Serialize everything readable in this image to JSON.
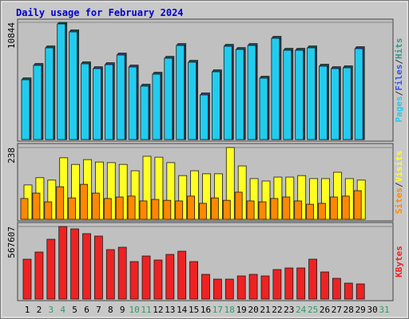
{
  "chart_data": [
    {
      "type": "bar",
      "title": "Daily usage for February 2024",
      "categories": [
        "1",
        "2",
        "3",
        "4",
        "5",
        "6",
        "7",
        "8",
        "9",
        "10",
        "11",
        "12",
        "13",
        "14",
        "15",
        "16",
        "17",
        "18",
        "19",
        "20",
        "21",
        "22",
        "23",
        "24",
        "25",
        "26",
        "27",
        "28",
        "29",
        "30",
        "31"
      ],
      "weekend_indices": [
        2,
        3,
        9,
        10,
        16,
        17,
        23,
        24,
        30
      ],
      "weekend_color": "#339966",
      "weekday_color": "#000000",
      "legend_separator": "/",
      "ylim": [
        0,
        10844
      ],
      "yticks": [
        10844
      ],
      "grid": true,
      "series": [
        {
          "name": "Hits",
          "color": "#339988",
          "values": [
            5710,
            7040,
            8660,
            10844,
            10140,
            7190,
            6740,
            7110,
            8000,
            6890,
            5120,
            6230,
            7700,
            8880,
            7330,
            4310,
            6450,
            8810,
            8510,
            8880,
            5860,
            9550,
            8440,
            8440,
            8660,
            6970,
            6740,
            6820,
            8590,
            null,
            null
          ]
        },
        {
          "name": "Files",
          "color": "#3355ee",
          "values": [
            5620,
            6950,
            8570,
            10760,
            10050,
            7100,
            6650,
            7020,
            7910,
            6800,
            5030,
            6140,
            7610,
            8790,
            7240,
            4220,
            6360,
            8720,
            8420,
            8790,
            5770,
            9460,
            8350,
            8350,
            8570,
            6880,
            6650,
            6730,
            8500,
            null,
            null
          ]
        },
        {
          "name": "Pages",
          "color": "#22ccee",
          "values": [
            5533,
            6861,
            8484,
            10697,
            9959,
            7008,
            6566,
            6934,
            7820,
            6713,
            4943,
            6049,
            7525,
            8705,
            7156,
            4131,
            6270,
            8631,
            8336,
            8705,
            5680,
            9369,
            8262,
            8262,
            8484,
            6787,
            6566,
            6639,
            8410,
            null,
            null
          ]
        }
      ]
    },
    {
      "type": "bar",
      "ylim": [
        0,
        238
      ],
      "yticks": [
        238
      ],
      "grid": true,
      "series": [
        {
          "name": "Visits",
          "color": "#ffff22",
          "values": [
            114,
            138,
            130,
            204,
            182,
            198,
            190,
            188,
            182,
            161,
            209,
            206,
            188,
            145,
            161,
            151,
            151,
            238,
            177,
            135,
            127,
            140,
            140,
            145,
            135,
            135,
            156,
            135,
            130,
            null,
            null
          ]
        },
        {
          "name": "Sites",
          "color": "#ff8800",
          "values": [
            69,
            87,
            58,
            108,
            71,
            116,
            87,
            69,
            74,
            77,
            61,
            66,
            63,
            61,
            77,
            53,
            71,
            63,
            90,
            61,
            58,
            69,
            74,
            61,
            50,
            53,
            74,
            77,
            95,
            null,
            null
          ]
        }
      ]
    },
    {
      "type": "bar",
      "ylim": [
        0,
        567607
      ],
      "yticks": [
        567607
      ],
      "grid": true,
      "series": [
        {
          "name": "KBytes",
          "color": "#ee2222",
          "values": [
            311850,
            368000,
            467800,
            567607,
            548900,
            511500,
            492700,
            386700,
            405400,
            293100,
            336800,
            305600,
            349300,
            374200,
            293100,
            193300,
            155900,
            155900,
            180900,
            193300,
            180900,
            230800,
            243200,
            243200,
            311850,
            212100,
            162200,
            124700,
            118500,
            null,
            null
          ]
        }
      ]
    }
  ]
}
